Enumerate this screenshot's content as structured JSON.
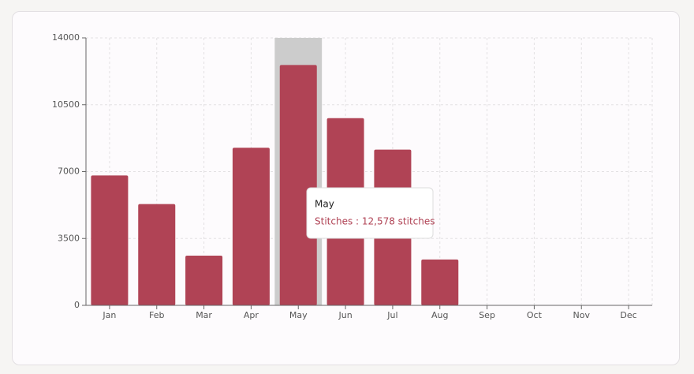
{
  "chart_data": {
    "type": "bar",
    "categories": [
      "Jan",
      "Feb",
      "Mar",
      "Apr",
      "May",
      "Jun",
      "Jul",
      "Aug",
      "Sep",
      "Oct",
      "Nov",
      "Dec"
    ],
    "series": [
      {
        "name": "Stitches",
        "color": "#b04355",
        "values": [
          6800,
          5300,
          2600,
          8250,
          12578,
          9800,
          8150,
          2400,
          null,
          null,
          null,
          null
        ]
      }
    ],
    "ylim": [
      0,
      14000
    ],
    "yticks": [
      0,
      3500,
      7000,
      10500,
      14000
    ],
    "grid": true,
    "highlight": 4,
    "tooltip": "Stitches : 12,578 stitches"
  }
}
